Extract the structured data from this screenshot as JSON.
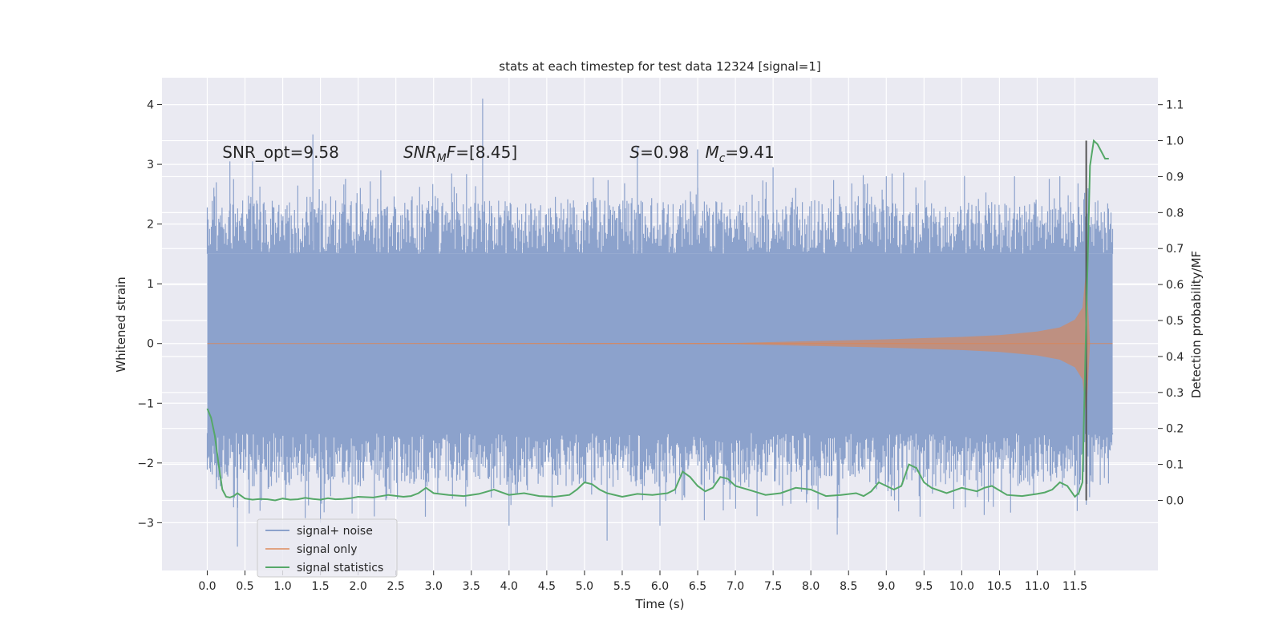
{
  "chart_data": {
    "type": "line",
    "title": "stats at each timestep for test data 12324 [signal=1]",
    "xlabel": "Time (s)",
    "ylabel": "Whitened strain",
    "ylabel_right": "Detection probability/MF",
    "xlim": [
      -0.6,
      12.6
    ],
    "ylim": [
      -3.8,
      4.45
    ],
    "ylim_right": [
      -0.195,
      1.175
    ],
    "x_ticks": [
      0.0,
      0.5,
      1.0,
      1.5,
      2.0,
      2.5,
      3.0,
      3.5,
      4.0,
      4.5,
      5.0,
      5.5,
      6.0,
      6.5,
      7.0,
      7.5,
      8.0,
      8.5,
      9.0,
      9.5,
      10.0,
      10.5,
      11.0,
      11.5
    ],
    "x_tick_labels": [
      "0.0",
      "0.5",
      "1.0",
      "1.5",
      "2.0",
      "2.5",
      "3.0",
      "3.5",
      "4.0",
      "4.5",
      "5.0",
      "5.5",
      "6.0",
      "6.5",
      "7.0",
      "7.5",
      "8.0",
      "8.5",
      "9.0",
      "9.5",
      "10.0",
      "10.5",
      "11.0",
      "11.5"
    ],
    "y_ticks": [
      -3,
      -2,
      -1,
      0,
      1,
      2,
      3,
      4
    ],
    "y_tick_labels": [
      "−3",
      "−2",
      "−1",
      "0",
      "1",
      "2",
      "3",
      "4"
    ],
    "y_ticks_right": [
      0.0,
      0.1,
      0.2,
      0.3,
      0.4,
      0.5,
      0.6,
      0.7,
      0.8,
      0.9,
      1.0,
      1.1
    ],
    "y_tick_labels_right": [
      "0.0",
      "0.1",
      "0.2",
      "0.3",
      "0.4",
      "0.5",
      "0.6",
      "0.7",
      "0.8",
      "0.9",
      "1.0",
      "1.1"
    ],
    "annotations": [
      {
        "text": "SNR_opt=9.58",
        "x": 0.2,
        "y": 3.2
      },
      {
        "text": "SNR_MF=[8.45]",
        "x": 2.6,
        "y": 3.2
      },
      {
        "text": "S=0.98",
        "x": 5.6,
        "y": 3.2
      },
      {
        "text": "M_c=9.41",
        "x": 6.6,
        "y": 3.2
      }
    ],
    "legend": {
      "position": "lower-left",
      "entries": [
        "signal+ noise",
        "signal only",
        "signal statistics"
      ]
    },
    "colors": {
      "noise": "#8ca2cc",
      "signal": "#dd8452",
      "stats": "#55a868",
      "vline": "#555555",
      "background": "#eaeaf2",
      "grid": "#ffffff"
    },
    "series": [
      {
        "name": "signal+ noise",
        "x_range": [
          0.0,
          12.0
        ],
        "band": [
          -1.5,
          1.5
        ],
        "upper_peaks": [
          {
            "x": 0.0,
            "y": 2.25
          },
          {
            "x": 0.12,
            "y": 2.7
          },
          {
            "x": 0.3,
            "y": 3.05
          },
          {
            "x": 0.6,
            "y": 3.05
          },
          {
            "x": 1.2,
            "y": 2.6
          },
          {
            "x": 1.4,
            "y": 3.5
          },
          {
            "x": 2.3,
            "y": 2.9
          },
          {
            "x": 3.65,
            "y": 4.1
          },
          {
            "x": 5.7,
            "y": 3.3
          },
          {
            "x": 6.5,
            "y": 3.25
          },
          {
            "x": 7.5,
            "y": 2.95
          },
          {
            "x": 9.0,
            "y": 2.8
          },
          {
            "x": 10.7,
            "y": 2.8
          },
          {
            "x": 11.3,
            "y": 2.8
          }
        ],
        "lower_peaks": [
          {
            "x": 0.4,
            "y": -3.4
          },
          {
            "x": 0.7,
            "y": -2.8
          },
          {
            "x": 1.5,
            "y": -3.0
          },
          {
            "x": 4.0,
            "y": -3.05
          },
          {
            "x": 5.3,
            "y": -3.3
          },
          {
            "x": 6.0,
            "y": -3.05
          },
          {
            "x": 8.35,
            "y": -3.2
          },
          {
            "x": 11.65,
            "y": -2.7
          }
        ]
      },
      {
        "name": "signal only",
        "x": [
          0.0,
          7.0,
          8.0,
          9.0,
          10.0,
          10.5,
          11.0,
          11.3,
          11.5,
          11.6,
          11.65,
          11.7,
          12.0
        ],
        "envelope": [
          0.0,
          0.01,
          0.04,
          0.07,
          0.11,
          0.14,
          0.2,
          0.27,
          0.4,
          0.6,
          1.25,
          0.0,
          0.0
        ]
      },
      {
        "name": "signal statistics",
        "x": [
          0.0,
          0.05,
          0.1,
          0.15,
          0.2,
          0.25,
          0.3,
          0.35,
          0.4,
          0.5,
          0.6,
          0.7,
          0.8,
          0.9,
          1.0,
          1.1,
          1.2,
          1.3,
          1.4,
          1.5,
          1.6,
          1.7,
          1.8,
          1.9,
          2.0,
          2.2,
          2.4,
          2.6,
          2.7,
          2.8,
          2.9,
          3.0,
          3.2,
          3.4,
          3.6,
          3.8,
          4.0,
          4.2,
          4.4,
          4.6,
          4.8,
          4.9,
          5.0,
          5.1,
          5.2,
          5.3,
          5.5,
          5.7,
          5.9,
          6.1,
          6.2,
          6.3,
          6.4,
          6.5,
          6.6,
          6.7,
          6.8,
          6.9,
          7.0,
          7.2,
          7.4,
          7.6,
          7.8,
          8.0,
          8.2,
          8.4,
          8.6,
          8.7,
          8.8,
          8.9,
          9.0,
          9.1,
          9.2,
          9.3,
          9.4,
          9.5,
          9.6,
          9.8,
          10.0,
          10.2,
          10.3,
          10.4,
          10.6,
          10.8,
          11.0,
          11.1,
          11.2,
          11.3,
          11.4,
          11.5,
          11.55,
          11.6,
          11.65,
          11.7,
          11.75,
          11.8,
          11.85,
          11.9,
          11.95
        ],
        "values": [
          0.255,
          0.23,
          0.18,
          0.1,
          0.03,
          0.01,
          0.008,
          0.012,
          0.02,
          0.005,
          0.002,
          0.004,
          0.003,
          0.0,
          0.005,
          0.002,
          0.003,
          0.007,
          0.004,
          0.002,
          0.006,
          0.003,
          0.004,
          0.006,
          0.01,
          0.008,
          0.015,
          0.01,
          0.012,
          0.02,
          0.035,
          0.02,
          0.015,
          0.012,
          0.018,
          0.03,
          0.015,
          0.02,
          0.012,
          0.01,
          0.015,
          0.03,
          0.05,
          0.045,
          0.03,
          0.02,
          0.01,
          0.018,
          0.015,
          0.02,
          0.03,
          0.08,
          0.065,
          0.04,
          0.025,
          0.035,
          0.065,
          0.06,
          0.04,
          0.028,
          0.015,
          0.02,
          0.035,
          0.03,
          0.012,
          0.015,
          0.02,
          0.012,
          0.025,
          0.05,
          0.04,
          0.03,
          0.04,
          0.1,
          0.09,
          0.05,
          0.035,
          0.02,
          0.035,
          0.025,
          0.035,
          0.04,
          0.015,
          0.012,
          0.018,
          0.022,
          0.03,
          0.05,
          0.04,
          0.01,
          0.02,
          0.05,
          0.5,
          0.93,
          1.0,
          0.99,
          0.97,
          0.95,
          0.95
        ]
      }
    ],
    "vline": {
      "x": 11.65,
      "y_range": [
        0.0,
        1.0
      ]
    }
  }
}
